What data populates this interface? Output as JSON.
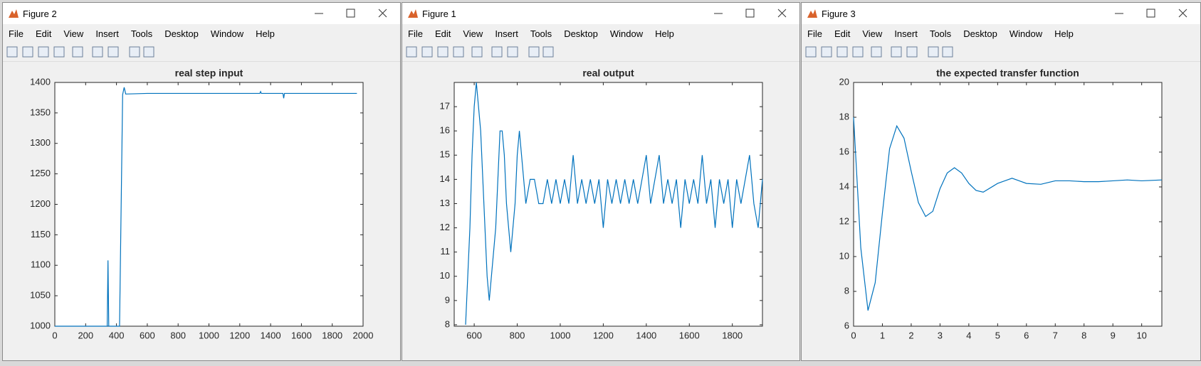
{
  "windows": [
    {
      "title": "Figure 2",
      "menu": [
        "File",
        "Edit",
        "View",
        "Insert",
        "Tools",
        "Desktop",
        "Window",
        "Help"
      ]
    },
    {
      "title": "Figure 1",
      "menu": [
        "File",
        "Edit",
        "View",
        "Insert",
        "Tools",
        "Desktop",
        "Window",
        "Help"
      ]
    },
    {
      "title": "Figure 3",
      "menu": [
        "File",
        "Edit",
        "View",
        "Insert",
        "Tools",
        "Desktop",
        "Window",
        "Help"
      ]
    }
  ],
  "chart_data": [
    {
      "type": "line",
      "title": "real step input",
      "color": "#0072bd",
      "x": [
        0,
        340,
        345,
        350,
        355,
        420,
        440,
        450,
        460,
        600,
        800,
        1000,
        1200,
        1330,
        1335,
        1340,
        1480,
        1485,
        1490,
        1700,
        1960
      ],
      "values": [
        1000,
        1000,
        1108,
        1000,
        1000,
        1000,
        1380,
        1392,
        1381,
        1382,
        1382,
        1382,
        1382,
        1382,
        1385,
        1382,
        1382,
        1374,
        1382,
        1382,
        1382
      ],
      "xlim": [
        0,
        2000
      ],
      "xticks": [
        0,
        200,
        400,
        600,
        800,
        1000,
        1200,
        1400,
        1600,
        1800,
        2000
      ],
      "ylim": [
        1000,
        1400
      ],
      "yticks": [
        1000,
        1050,
        1100,
        1150,
        1200,
        1250,
        1300,
        1350,
        1400
      ]
    },
    {
      "type": "line",
      "title": "real output",
      "color": "#0072bd",
      "x": [
        560,
        580,
        590,
        600,
        610,
        620,
        630,
        640,
        650,
        660,
        670,
        680,
        690,
        700,
        710,
        720,
        730,
        740,
        750,
        760,
        770,
        780,
        790,
        800,
        810,
        820,
        830,
        840,
        860,
        880,
        900,
        920,
        940,
        960,
        980,
        1000,
        1020,
        1040,
        1060,
        1080,
        1100,
        1120,
        1140,
        1160,
        1180,
        1200,
        1220,
        1240,
        1260,
        1280,
        1300,
        1320,
        1340,
        1360,
        1380,
        1400,
        1420,
        1440,
        1460,
        1480,
        1500,
        1520,
        1540,
        1560,
        1580,
        1600,
        1620,
        1640,
        1660,
        1680,
        1700,
        1720,
        1740,
        1760,
        1780,
        1800,
        1820,
        1840,
        1860,
        1880,
        1900,
        1920,
        1940
      ],
      "values": [
        8,
        12,
        15,
        17,
        18,
        17,
        16,
        14,
        12,
        10,
        9,
        10,
        11,
        12,
        14,
        16,
        16,
        15,
        13,
        12,
        11,
        12,
        13,
        15,
        16,
        15,
        14,
        13,
        14,
        14,
        13,
        13,
        14,
        13,
        14,
        13,
        14,
        13,
        15,
        13,
        14,
        13,
        14,
        13,
        14,
        12,
        14,
        13,
        14,
        13,
        14,
        13,
        14,
        13,
        14,
        15,
        13,
        14,
        15,
        13,
        14,
        13,
        14,
        12,
        14,
        13,
        14,
        13,
        15,
        13,
        14,
        12,
        14,
        13,
        14,
        12,
        14,
        13,
        14,
        15,
        13,
        12,
        14
      ],
      "xlim": [
        507,
        1940
      ],
      "xticks": [
        600,
        800,
        1000,
        1200,
        1400,
        1600,
        1800
      ],
      "ylim": [
        7.94,
        18
      ],
      "yticks": [
        8,
        9,
        10,
        11,
        12,
        13,
        14,
        15,
        16,
        17
      ]
    },
    {
      "type": "line",
      "title": "the expected transfer function",
      "color": "#0072bd",
      "x": [
        0,
        0.25,
        0.5,
        0.75,
        1,
        1.25,
        1.5,
        1.75,
        2,
        2.25,
        2.5,
        2.75,
        3,
        3.25,
        3.5,
        3.75,
        4,
        4.25,
        4.5,
        5,
        5.5,
        6,
        6.5,
        7,
        7.5,
        8,
        8.5,
        9,
        9.5,
        10,
        10.7
      ],
      "values": [
        18,
        10.5,
        6.9,
        8.5,
        12.5,
        16.2,
        17.5,
        16.8,
        14.9,
        13.1,
        12.3,
        12.6,
        13.9,
        14.8,
        15.1,
        14.8,
        14.2,
        13.8,
        13.7,
        14.2,
        14.5,
        14.2,
        14.15,
        14.35,
        14.35,
        14.3,
        14.3,
        14.35,
        14.4,
        14.35,
        14.4
      ],
      "xlim": [
        0,
        10.7
      ],
      "xticks": [
        0,
        1,
        2,
        3,
        4,
        5,
        6,
        7,
        8,
        9,
        10
      ],
      "ylim": [
        6,
        20
      ],
      "yticks": [
        6,
        8,
        10,
        12,
        14,
        16,
        18,
        20
      ]
    }
  ]
}
